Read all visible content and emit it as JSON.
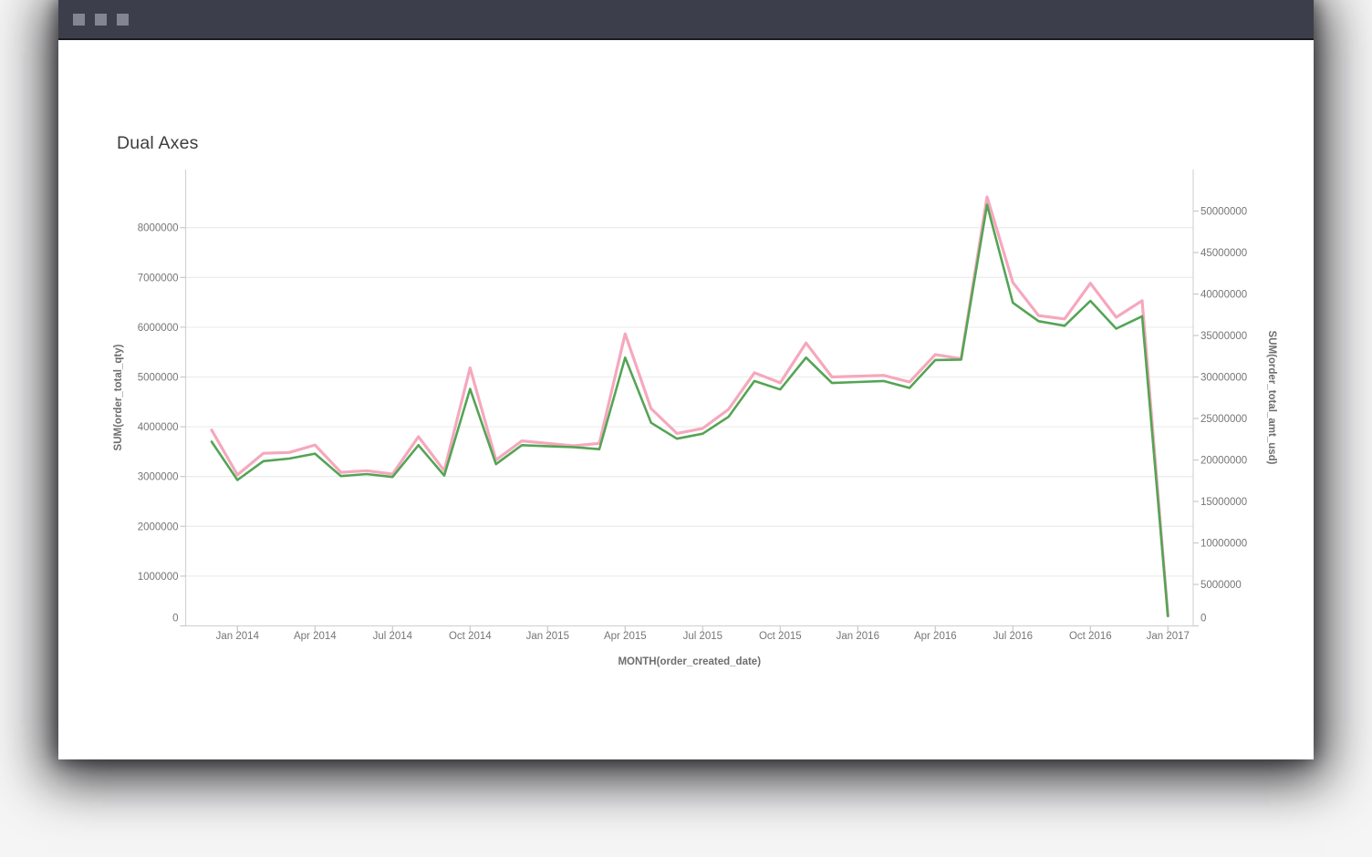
{
  "window": {
    "controls": [
      "window-control-1",
      "window-control-2",
      "window-control-3"
    ],
    "titlebar_color": "#3c3f4b"
  },
  "chart": {
    "title": "Dual Axes"
  },
  "chart_data": {
    "type": "line",
    "title": "Dual Axes",
    "xlabel": "MONTH(order_created_date)",
    "x": [
      "Dec 2013",
      "Jan 2014",
      "Feb 2014",
      "Mar 2014",
      "Apr 2014",
      "May 2014",
      "Jun 2014",
      "Jul 2014",
      "Aug 2014",
      "Sep 2014",
      "Oct 2014",
      "Nov 2014",
      "Dec 2014",
      "Jan 2015",
      "Feb 2015",
      "Mar 2015",
      "Apr 2015",
      "May 2015",
      "Jun 2015",
      "Jul 2015",
      "Aug 2015",
      "Sep 2015",
      "Oct 2015",
      "Nov 2015",
      "Dec 2015",
      "Jan 2016",
      "Feb 2016",
      "Mar 2016",
      "Apr 2016",
      "May 2016",
      "Jun 2016",
      "Jul 2016",
      "Aug 2016",
      "Sep 2016",
      "Oct 2016",
      "Nov 2016",
      "Dec 2016",
      "Jan 2017"
    ],
    "x_tick_labels": [
      "Jan 2014",
      "Apr 2014",
      "Jul 2014",
      "Oct 2014",
      "Jan 2015",
      "Apr 2015",
      "Jul 2015",
      "Oct 2015",
      "Jan 2016",
      "Apr 2016",
      "Jul 2016",
      "Oct 2016",
      "Jan 2017"
    ],
    "x_tick_first_index": 1,
    "x_tick_step": 3,
    "series": [
      {
        "name": "SUM(order_total_amt_usd)",
        "axis": "right",
        "color": "#f5a8bd",
        "width": 3.2,
        "values": [
          23600000,
          18200000,
          20800000,
          20900000,
          21800000,
          18500000,
          18700000,
          18300000,
          22800000,
          18700000,
          31100000,
          20000000,
          22300000,
          22000000,
          21700000,
          22000000,
          35200000,
          26200000,
          23200000,
          23800000,
          26100000,
          30500000,
          29300000,
          34100000,
          30000000,
          30100000,
          30200000,
          29400000,
          32700000,
          32200000,
          51700000,
          41400000,
          37400000,
          37000000,
          41300000,
          37200000,
          39200000,
          1200000
        ]
      },
      {
        "name": "SUM(order_total_qty)",
        "axis": "left",
        "color": "#54a454",
        "width": 2.6,
        "values": [
          3700000,
          2930000,
          3310000,
          3360000,
          3460000,
          3010000,
          3050000,
          2990000,
          3630000,
          3020000,
          4760000,
          3250000,
          3630000,
          3610000,
          3590000,
          3550000,
          5390000,
          4080000,
          3760000,
          3860000,
          4200000,
          4920000,
          4750000,
          5390000,
          4880000,
          4900000,
          4920000,
          4780000,
          5340000,
          5350000,
          8460000,
          6490000,
          6120000,
          6030000,
          6530000,
          5970000,
          6220000,
          200000
        ]
      }
    ],
    "y_left": {
      "label": "SUM(order_total_qty)",
      "tick_min": 0,
      "tick_max": 8000000,
      "tick_step": 1000000,
      "axis_max": 9166667,
      "tick_labels": [
        "0",
        "1000000",
        "2000000",
        "3000000",
        "4000000",
        "5000000",
        "6000000",
        "7000000",
        "8000000"
      ]
    },
    "y_right": {
      "label": "SUM(order_total_amt_usd)",
      "tick_min": 0,
      "tick_max": 50000000,
      "tick_step": 5000000,
      "axis_max": 55000000,
      "tick_labels": [
        "0",
        "5000000",
        "10000000",
        "15000000",
        "20000000",
        "25000000",
        "30000000",
        "35000000",
        "40000000",
        "45000000",
        "50000000"
      ]
    },
    "grid": "horizontal-left-ticks",
    "legend": "none",
    "colors": {
      "gridline": "#ededed",
      "axis_line": "#d4d4d4",
      "tick_mark": "#c9c9c9"
    }
  }
}
